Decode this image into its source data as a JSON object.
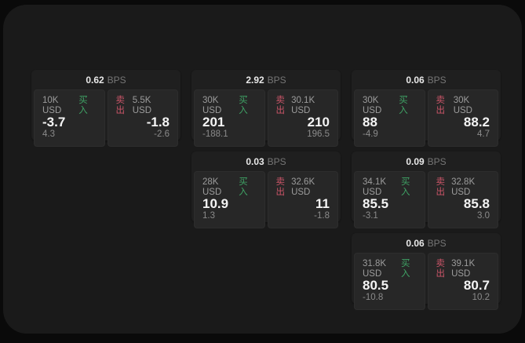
{
  "app": {
    "unit_label": "BPS",
    "buy_label": "买入",
    "sell_label": "卖出"
  },
  "colors": {
    "background": "#0a0a0a",
    "panel": "#1a1a1a",
    "card": "#1f1f1f",
    "subpanel": "#272727",
    "buy_green": "#3fa365",
    "sell_red": "#cb5568"
  },
  "cards": [
    {
      "col": 1,
      "row": 1,
      "bps": "0.62",
      "buy": {
        "size": "10K USD",
        "value": "-3.7",
        "delta": "4.3"
      },
      "sell": {
        "size": "5.5K USD",
        "value": "-1.8",
        "delta": "-2.6"
      }
    },
    {
      "col": 2,
      "row": 1,
      "bps": "2.92",
      "buy": {
        "size": "30K USD",
        "value": "201",
        "delta": "-188.1"
      },
      "sell": {
        "size": "30.1K USD",
        "value": "210",
        "delta": "196.5"
      }
    },
    {
      "col": 3,
      "row": 1,
      "bps": "0.06",
      "buy": {
        "size": "30K USD",
        "value": "88",
        "delta": "-4.9"
      },
      "sell": {
        "size": "30K USD",
        "value": "88.2",
        "delta": "4.7"
      }
    },
    {
      "col": 2,
      "row": 2,
      "bps": "0.03",
      "buy": {
        "size": "28K USD",
        "value": "10.9",
        "delta": "1.3"
      },
      "sell": {
        "size": "32.6K USD",
        "value": "11",
        "delta": "-1.8"
      }
    },
    {
      "col": 3,
      "row": 2,
      "bps": "0.09",
      "buy": {
        "size": "34.1K USD",
        "value": "85.5",
        "delta": "-3.1"
      },
      "sell": {
        "size": "32.8K USD",
        "value": "85.8",
        "delta": "3.0"
      }
    },
    {
      "col": 3,
      "row": 3,
      "bps": "0.06",
      "buy": {
        "size": "31.8K USD",
        "value": "80.5",
        "delta": "-10.8"
      },
      "sell": {
        "size": "39.1K USD",
        "value": "80.7",
        "delta": "10.2"
      }
    }
  ]
}
